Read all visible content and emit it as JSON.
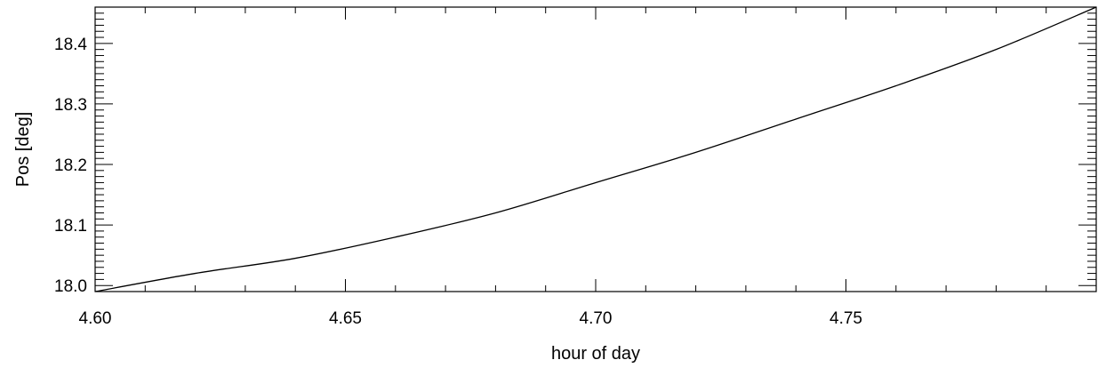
{
  "chart_data": {
    "type": "line",
    "title": "",
    "xlabel": "hour of day",
    "ylabel": "Pos [deg]",
    "xlim": [
      4.6,
      4.8
    ],
    "ylim": [
      17.99,
      18.46
    ],
    "x_ticks": [
      4.6,
      4.65,
      4.7,
      4.75
    ],
    "x_tick_labels": [
      "4.60",
      "4.65",
      "4.70",
      "4.75"
    ],
    "y_ticks": [
      18.0,
      18.1,
      18.2,
      18.3,
      18.4
    ],
    "y_tick_labels": [
      "18.0",
      "18.1",
      "18.2",
      "18.3",
      "18.4"
    ],
    "grid": false,
    "legend": "none",
    "line_color": "#000000",
    "series": [
      {
        "x": [
          4.6,
          4.62,
          4.64,
          4.66,
          4.68,
          4.7,
          4.72,
          4.74,
          4.76,
          4.78,
          4.8
        ],
        "values": [
          17.99,
          18.02,
          18.045,
          18.08,
          18.12,
          18.17,
          18.22,
          18.275,
          18.33,
          18.39,
          18.46
        ]
      }
    ]
  }
}
